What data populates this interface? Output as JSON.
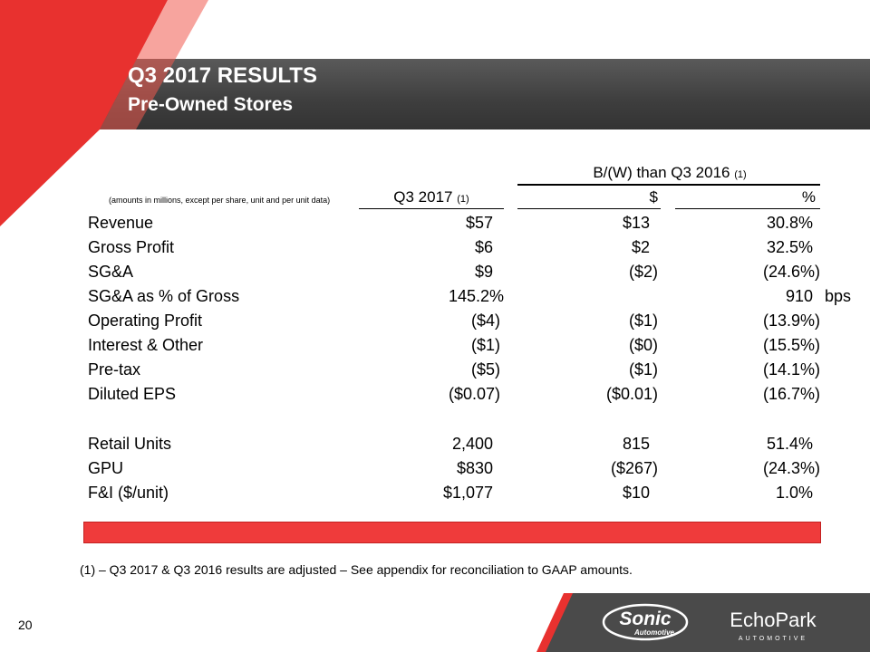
{
  "slide": {
    "title": "Q3 2017 RESULTS",
    "subtitle": "Pre-Owned Stores",
    "page_number": "20"
  },
  "table": {
    "group_header": "B/(W) than Q3 2016",
    "group_header_note": "(1)",
    "amounts_note": "(amounts in millions, except per share, unit and per unit data)",
    "columns": [
      {
        "label": "Q3 2017",
        "note": "(1)"
      },
      {
        "label": "$",
        "note": ""
      },
      {
        "label": "%",
        "note": ""
      }
    ],
    "rows": [
      {
        "label": "Revenue",
        "q3_2017": "$57",
        "dollar": "$13",
        "pct": "30.8%"
      },
      {
        "label": "Gross Profit",
        "q3_2017": "$6",
        "dollar": "$2",
        "pct": "32.5%"
      },
      {
        "label": "SG&A",
        "q3_2017": "$9",
        "dollar": "($2)",
        "pct": "(24.6%)"
      },
      {
        "label": "SG&A as % of Gross",
        "q3_2017": "145.2%",
        "dollar": "",
        "pct": "910",
        "unit": "bps"
      },
      {
        "label": "Operating Profit",
        "q3_2017": "($4)",
        "dollar": "($1)",
        "pct": "(13.9%)"
      },
      {
        "label": "Interest & Other",
        "q3_2017": "($1)",
        "dollar": "($0)",
        "pct": "(15.5%)"
      },
      {
        "label": "Pre-tax",
        "q3_2017": "($5)",
        "dollar": "($1)",
        "pct": "(14.1%)"
      },
      {
        "label": "Diluted EPS",
        "q3_2017": "($0.07)",
        "dollar": "($0.01)",
        "pct": "(16.7%)"
      },
      {
        "label": "Retail Units",
        "q3_2017": "2,400",
        "dollar": "815",
        "pct": "51.4%"
      },
      {
        "label": "GPU",
        "q3_2017": "$830",
        "dollar": "($267)",
        "pct": "(24.3%)"
      },
      {
        "label": "F&I ($/unit)",
        "q3_2017": "$1,077",
        "dollar": "$10",
        "pct": "1.0%"
      }
    ]
  },
  "footnote": "(1) – Q3 2017 & Q3 2016 results are adjusted – See appendix for reconciliation to GAAP amounts.",
  "logos": {
    "sonic": {
      "name": "Sonic",
      "sub": "Automotive"
    },
    "echopark": {
      "name": "EchoPark",
      "sub": "AUTOMOTIVE"
    }
  },
  "colors": {
    "accent_red": "#e8312f",
    "header_gray": "#404040",
    "footer_gray": "#4a4a4a"
  }
}
